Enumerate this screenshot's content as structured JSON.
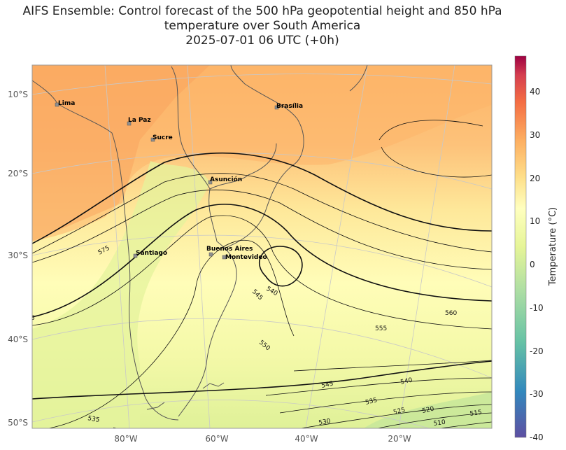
{
  "title": {
    "line1": "AIFS Ensemble: Control forecast of the 500 hPa geopotential height and 850 hPa",
    "line2": "temperature over South America",
    "line3": "2025-07-01 06 UTC (+0h)"
  },
  "map": {
    "lat_labels": [
      "10°S",
      "20°S",
      "30°S",
      "40°S",
      "50°S"
    ],
    "lon_labels": [
      "80°W",
      "60°W",
      "40°W",
      "20°W"
    ],
    "cities": [
      {
        "name": "Lima"
      },
      {
        "name": "La Paz"
      },
      {
        "name": "Sucre"
      },
      {
        "name": "Brasília"
      },
      {
        "name": "Asunción"
      },
      {
        "name": "Santiago"
      },
      {
        "name": "Buenos Aires"
      },
      {
        "name": "Montevideo"
      }
    ],
    "contour_labels": [
      "575",
      "560",
      "555",
      "550",
      "545",
      "540",
      "545",
      "540",
      "535",
      "530",
      "525",
      "520",
      "515",
      "510",
      "535",
      "560",
      "5"
    ]
  },
  "colorbar": {
    "label": "Temperature (°C)",
    "ticks": [
      "40",
      "30",
      "20",
      "10",
      "0",
      "-10",
      "-20",
      "-30",
      "-40"
    ]
  },
  "colors": {
    "hot": "#f46d43",
    "warm": "#fdae61",
    "mild": "#fee08b",
    "neutral": "#ffffbf",
    "cool": "#d9ef8b",
    "cold": "#66c2a5",
    "coldest": "#5e4fa2",
    "top": "#9e0142"
  }
}
